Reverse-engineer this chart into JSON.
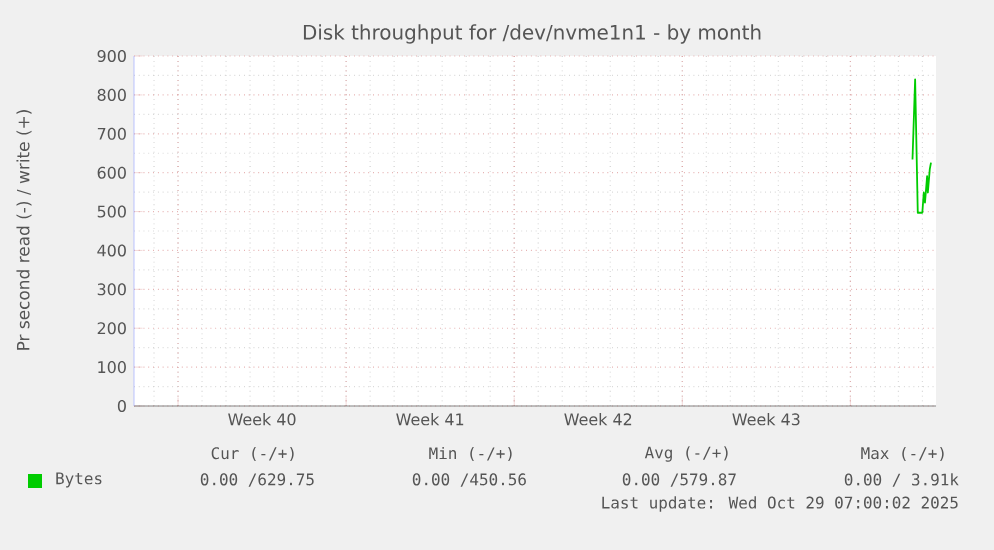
{
  "chart_data": {
    "type": "line",
    "title": "Disk throughput for /dev/nvme1n1 - by month",
    "ylabel": "Pr second read (-) / write (+)",
    "xlim": [
      "2025-09-27T04:00",
      "2025-10-30T13:36"
    ],
    "ylim": [
      0,
      900
    ],
    "xticks": [
      {
        "value": "2025-09-29",
        "label": null
      },
      {
        "value": "2025-10-02T12:00",
        "label": "Week 40"
      },
      {
        "value": "2025-10-06",
        "label": null
      },
      {
        "value": "2025-10-09T12:00",
        "label": "Week 41"
      },
      {
        "value": "2025-10-13",
        "label": null
      },
      {
        "value": "2025-10-16T12:00",
        "label": "Week 42"
      },
      {
        "value": "2025-10-20",
        "label": null
      },
      {
        "value": "2025-10-23T12:00",
        "label": "Week 43"
      },
      {
        "value": "2025-10-27",
        "label": null
      }
    ],
    "yticks": [
      0,
      100,
      200,
      300,
      400,
      500,
      600,
      700,
      800,
      900
    ],
    "grid": true,
    "legend": "bottom",
    "marker": "none",
    "line_style": "solid",
    "series": [
      {
        "name": "Bytes",
        "color": "#00cc00",
        "x": [
          "2025-10-29T14:05",
          "2025-10-29T16:43",
          "2025-10-29T19:22",
          "2025-10-29T23:55",
          "2025-10-30T01:22",
          "2025-10-30T02:34",
          "2025-10-30T04:43",
          "2025-10-30T05:26",
          "2025-10-30T07:22",
          "2025-10-30T08:34"
        ],
        "values": [
          634,
          840,
          497,
          497,
          549,
          523,
          591,
          549,
          609,
          626
        ]
      }
    ],
    "annotations": [
      "Cur (-/+)",
      "Min (-/+)",
      "Avg (-/+)",
      "Max (-/+)",
      "0.00 /629.75",
      "0.00 /450.56",
      "0.00 /579.87",
      "0.00 /  3.91k",
      "Last update: Wed Oct 29 07:00:02 2025"
    ]
  }
}
